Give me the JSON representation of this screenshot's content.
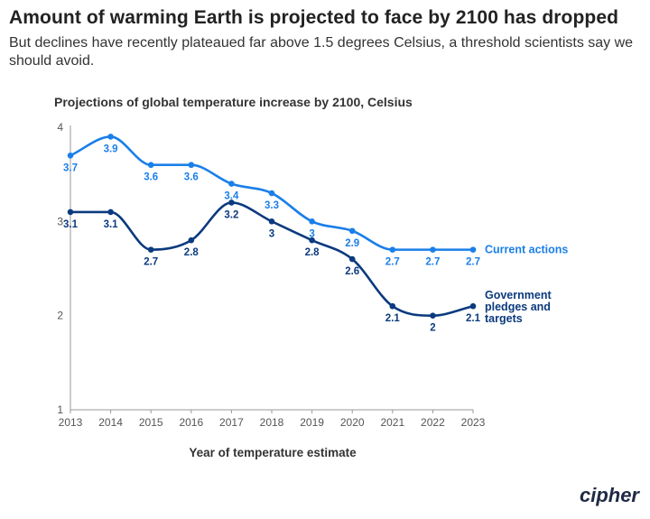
{
  "headline": "Amount of warming Earth is projected to face by 2100 has dropped",
  "subheadline": "But declines have recently plateaued far above 1.5 degrees Celsius, a threshold scientists say we should avoid.",
  "brand": "cipher",
  "colors": {
    "current": "#1a7fe8",
    "pledges": "#0b3a7e",
    "axis": "#999999"
  },
  "chart_data": {
    "type": "line",
    "title": "Projections of global temperature increase by 2100, Celsius",
    "xlabel": "Year of temperature estimate",
    "ylabel": "",
    "x": [
      2013,
      2014,
      2015,
      2016,
      2017,
      2018,
      2019,
      2020,
      2021,
      2022,
      2023
    ],
    "ylim": [
      1,
      4
    ],
    "yticks": [
      1,
      2,
      3,
      4
    ],
    "grid": false,
    "series": [
      {
        "name": "Current actions",
        "values": [
          3.7,
          3.9,
          3.6,
          3.6,
          3.4,
          3.3,
          3.0,
          2.9,
          2.7,
          2.7,
          2.7
        ],
        "labels": [
          "3.7",
          "3.9",
          "3.6",
          "3.6",
          "3.4",
          "3.3",
          "3",
          "2.9",
          "2.7",
          "2.7",
          "2.7"
        ]
      },
      {
        "name": "Government pledges and targets",
        "values": [
          3.1,
          3.1,
          2.7,
          2.8,
          3.2,
          3.0,
          2.8,
          2.6,
          2.1,
          2.0,
          2.1
        ],
        "labels": [
          "3.1",
          "3.1",
          "2.7",
          "2.8",
          "3.2",
          "3",
          "2.8",
          "2.6",
          "2.1",
          "2",
          "2.1"
        ]
      }
    ]
  }
}
